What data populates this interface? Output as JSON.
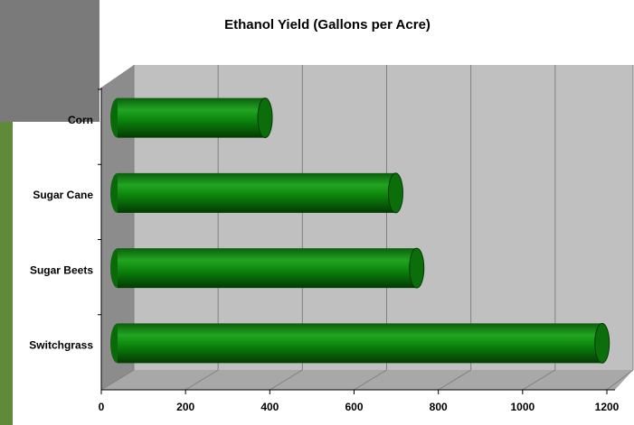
{
  "chart_data": {
    "type": "bar",
    "orientation": "horizontal",
    "title": "Ethanol Yield (Gallons per Acre)",
    "categories": [
      "Corn",
      "Sugar Cane",
      "Sugar Beets",
      "Switchgrass"
    ],
    "values": [
      350,
      660,
      710,
      1150
    ],
    "color": "#0a7a0a",
    "xlim": [
      0,
      1200
    ],
    "xticks": [
      0,
      200,
      400,
      600,
      800,
      1000,
      1200
    ],
    "grid": true
  }
}
